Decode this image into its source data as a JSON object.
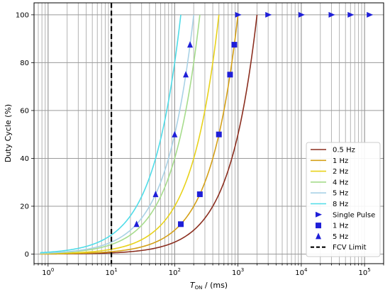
{
  "chart_data": {
    "type": "line",
    "ylabel": "Duty Cycle (%)",
    "xlabel_main": "T",
    "xlabel_sub": "ON",
    "xlabel_rest": " / (ms)",
    "xscale": "log",
    "xlim": [
      0.6,
      200000
    ],
    "ylim": [
      -4,
      105
    ],
    "grid": true,
    "legend_position": "lower-right",
    "x_ticks": [
      {
        "value": 1,
        "base": "10",
        "exp": "0"
      },
      {
        "value": 10,
        "base": "10",
        "exp": "1"
      },
      {
        "value": 100,
        "base": "10",
        "exp": "2"
      },
      {
        "value": 1000,
        "base": "10",
        "exp": "3"
      },
      {
        "value": 10000,
        "base": "10",
        "exp": "4"
      },
      {
        "value": 100000,
        "base": "10",
        "exp": "5"
      }
    ],
    "y_ticks": [
      {
        "value": 0,
        "label": "0"
      },
      {
        "value": 20,
        "label": "20"
      },
      {
        "value": 40,
        "label": "40"
      },
      {
        "value": 60,
        "label": "60"
      },
      {
        "value": 80,
        "label": "80"
      },
      {
        "value": 100,
        "label": "100"
      }
    ],
    "series": [
      {
        "name": "0.5 Hz",
        "frequency_hz": 0.5,
        "color": "#8b2e1f"
      },
      {
        "name": "1 Hz",
        "frequency_hz": 1,
        "color": "#d4a017"
      },
      {
        "name": "2 Hz",
        "frequency_hz": 2,
        "color": "#e8d21a"
      },
      {
        "name": "4 Hz",
        "frequency_hz": 4,
        "color": "#a6dc8c"
      },
      {
        "name": "5 Hz",
        "frequency_hz": 5,
        "color": "#a9d2e6"
      },
      {
        "name": "8 Hz",
        "frequency_hz": 8,
        "color": "#4fdce8"
      }
    ],
    "markers": [
      {
        "name": "Single Pulse",
        "shape": "triangle-right",
        "color": "#1f1fd8",
        "points": [
          [
            1000,
            100
          ],
          [
            3000,
            100
          ],
          [
            10000,
            100
          ],
          [
            30000,
            100
          ],
          [
            60000,
            100
          ],
          [
            120000,
            100
          ]
        ]
      },
      {
        "name": "1 Hz",
        "shape": "square",
        "color": "#1f1fd8",
        "points": [
          [
            125,
            12.5
          ],
          [
            250,
            25
          ],
          [
            500,
            50
          ],
          [
            750,
            75
          ],
          [
            875,
            87.5
          ]
        ]
      },
      {
        "name": "5 Hz",
        "shape": "triangle-up",
        "color": "#1f1fd8",
        "points": [
          [
            25,
            12.5
          ],
          [
            50,
            25
          ],
          [
            100,
            50
          ],
          [
            150,
            75
          ],
          [
            175,
            87.5
          ]
        ]
      }
    ],
    "vlines": [
      {
        "name": "FCV Limit",
        "x": 10,
        "color": "#000000",
        "style": "dashed"
      }
    ]
  }
}
